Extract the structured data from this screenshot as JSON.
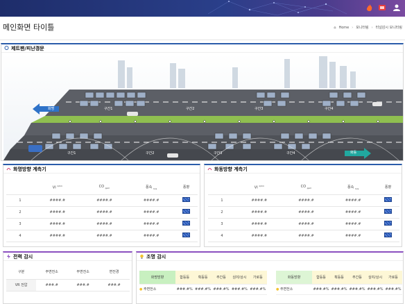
{
  "header": {
    "icons": [
      "fire-icon",
      "alarm-icon",
      "user-icon"
    ]
  },
  "page": {
    "title": "메인화면 타이틀"
  },
  "breadcrumb": {
    "home": "Home",
    "level1": "모니터링",
    "level2": "터널감시 모니터링"
  },
  "tunnel": {
    "title": "제트팬/피난갱문",
    "arrow_left": "화명",
    "arrow_right": "화동",
    "upper_lanes": [
      "구간1",
      "구간2",
      "구간3",
      "구간4"
    ],
    "lower_lanes": [
      "구간1",
      "구간2",
      "구간3",
      "구간4"
    ]
  },
  "meter_left": {
    "title": "화명방향 계측기",
    "headers": {
      "vi": "VI",
      "vi_unit": "1/km",
      "co": "CO",
      "co_unit": "ppm",
      "wind": "풍속",
      "wind_unit": "m/s",
      "fan": "풍향"
    },
    "rows": [
      {
        "no": "1",
        "vi": "####.#",
        "co": "####.#",
        "wind": "####.#"
      },
      {
        "no": "2",
        "vi": "####.#",
        "co": "####.#",
        "wind": "####.#"
      },
      {
        "no": "3",
        "vi": "####.#",
        "co": "####.#",
        "wind": "####.#"
      },
      {
        "no": "4",
        "vi": "####.#",
        "co": "####.#",
        "wind": "####.#"
      }
    ]
  },
  "meter_right": {
    "title": "화동방향 계측기",
    "headers": {
      "vi": "VI",
      "vi_unit": "1/km",
      "co": "CO",
      "co_unit": "ppm",
      "wind": "풍속",
      "wind_unit": "m/s",
      "fan": "풍향"
    },
    "rows": [
      {
        "no": "1",
        "vi": "####.#",
        "co": "####.#",
        "wind": "####.#"
      },
      {
        "no": "2",
        "vi": "####.#",
        "co": "####.#",
        "wind": "####.#"
      },
      {
        "no": "3",
        "vi": "####.#",
        "co": "####.#",
        "wind": "####.#"
      },
      {
        "no": "4",
        "vi": "####.#",
        "co": "####.#",
        "wind": "####.#"
      }
    ]
  },
  "power": {
    "title": "전력 감시",
    "headers": [
      "구분",
      "주변전소",
      "부변전소",
      "변전경"
    ],
    "row": {
      "label": "VR 전압",
      "a": "###.#",
      "b": "###.#",
      "c": "###.#"
    }
  },
  "lighting": {
    "title": "조명 감시",
    "left_dir": "화명방향",
    "right_dir": "화동방향",
    "cols": [
      "합등등",
      "획등등",
      "주간등",
      "심야/상시",
      "가로등"
    ],
    "row_label": "주변전소",
    "values": [
      "###.#%",
      "###.#%",
      "###.#%",
      "###.#%",
      "###.#%"
    ]
  }
}
